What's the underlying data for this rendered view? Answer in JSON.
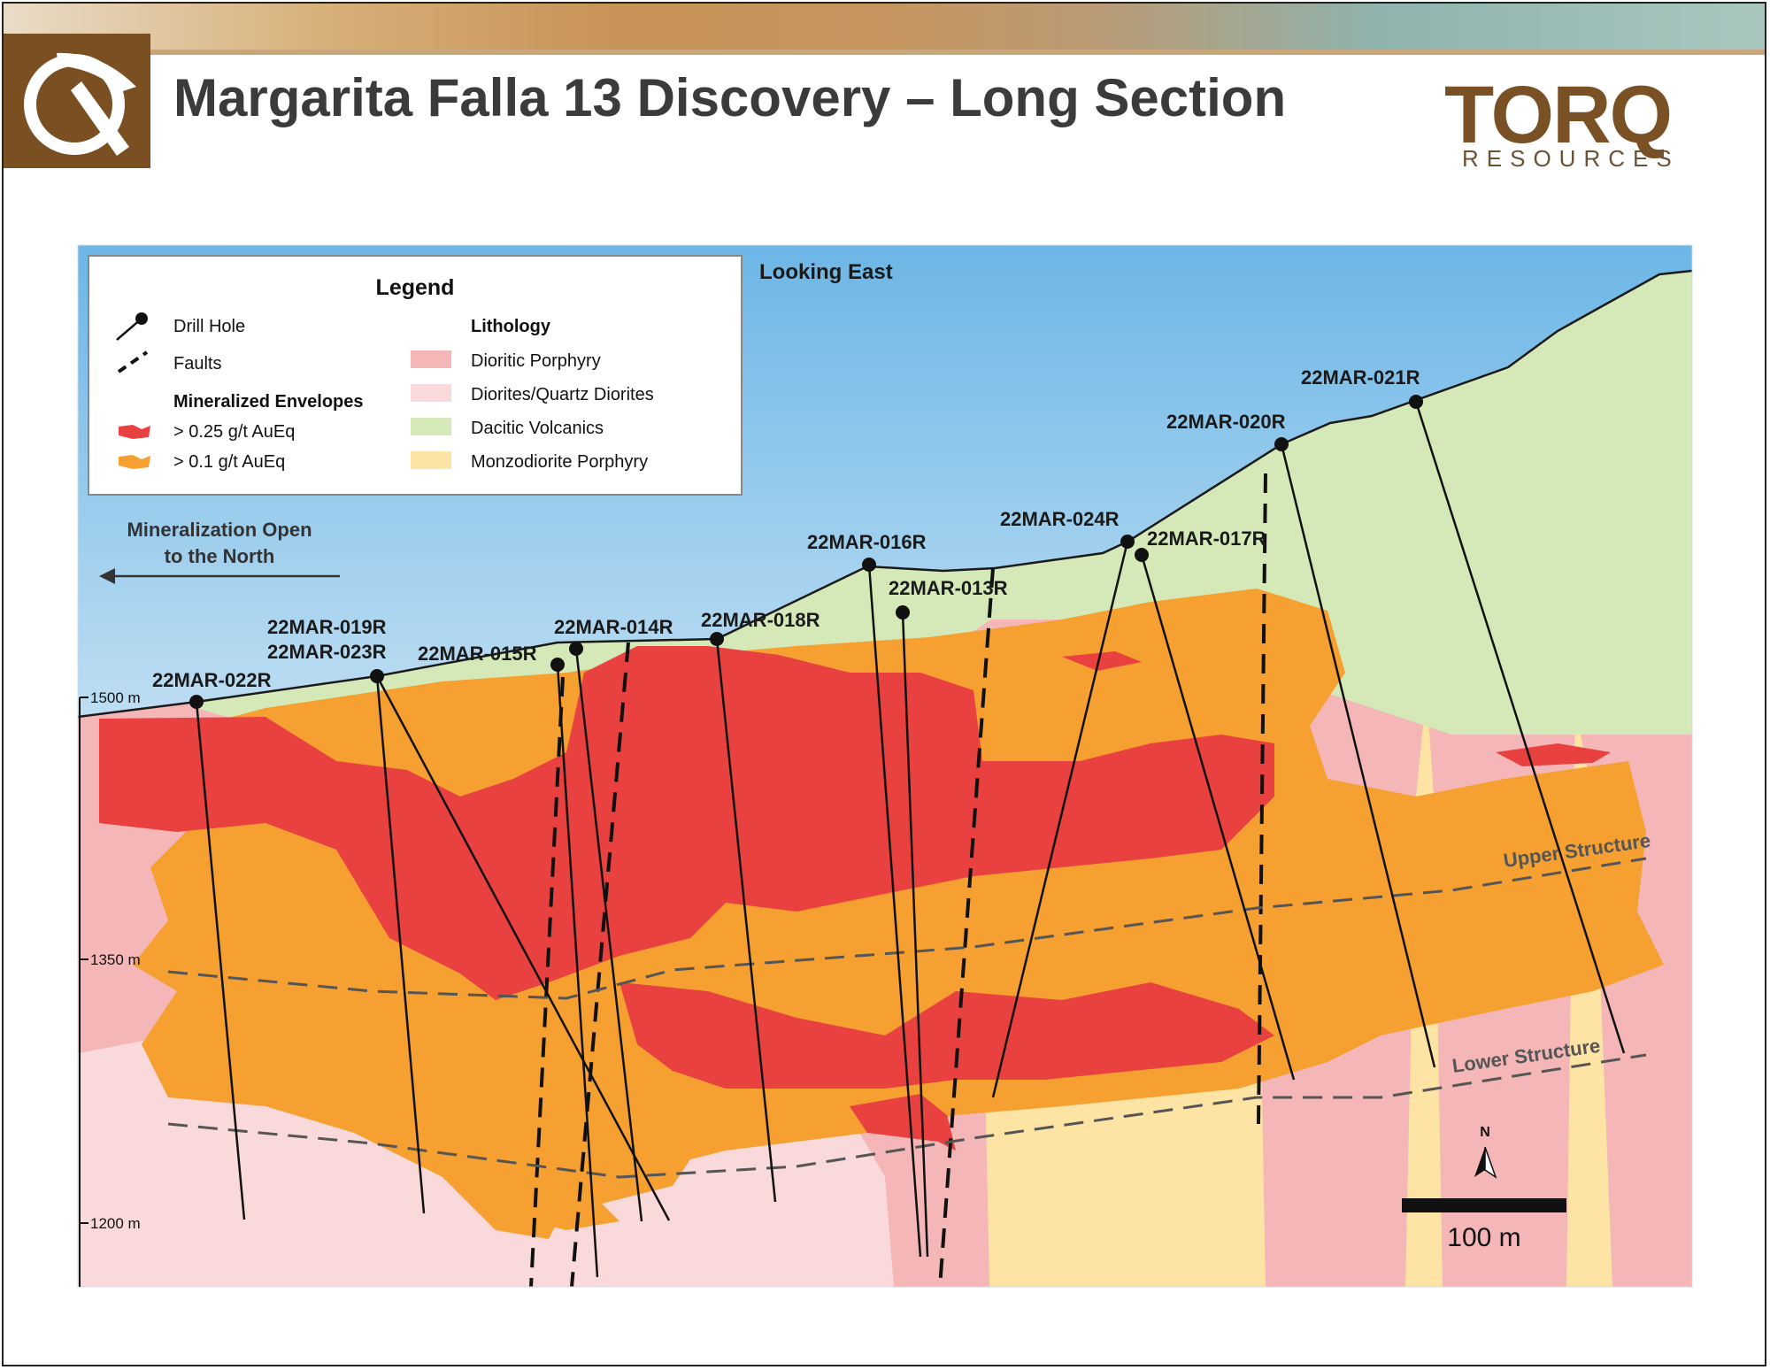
{
  "header": {
    "title": "Margarita Falla 13 Discovery – Long Section",
    "brand_name": "TORQ",
    "brand_tagline": "RESOURCES"
  },
  "section": {
    "view_label": "Looking East",
    "open_note_line1": "Mineralization Open",
    "open_note_line2": "to the North",
    "elevations": [
      "1500 m",
      "1350 m",
      "1200 m"
    ],
    "structures": {
      "upper": "Upper Structure",
      "lower": "Lower Structure"
    },
    "north_label": "N",
    "scale_label": "100 m"
  },
  "legend": {
    "title": "Legend",
    "drill_hole": "Drill Hole",
    "faults": "Faults",
    "mineralized_heading": "Mineralized Envelopes",
    "envelope_high": "> 0.25 g/t AuEq",
    "envelope_low": "> 0.1 g/t AuEq",
    "lithology_heading": "Lithology",
    "lith_1": "Dioritic Porphyry",
    "lith_2": "Diorites/Quartz Diorites",
    "lith_3": "Dacitic Volcanics",
    "lith_4": "Monzodiorite Porphyry"
  },
  "drill_holes": {
    "h022": "22MAR-022R",
    "h019": "22MAR-019R",
    "h023": "22MAR-023R",
    "h015": "22MAR-015R",
    "h014": "22MAR-014R",
    "h018": "22MAR-018R",
    "h016": "22MAR-016R",
    "h013": "22MAR-013R",
    "h024": "22MAR-024R",
    "h017": "22MAR-017R",
    "h020": "22MAR-020R",
    "h021": "22MAR-021R"
  },
  "colors": {
    "dioritic_porphyry": "#f4b6b6",
    "diorites": "#f9d9d9",
    "dacitic_volcanics": "#d5e8b8",
    "monzodiorite": "#fde3a4",
    "envelope_high": "#e8413f",
    "envelope_low": "#f5a030",
    "brand_brown": "#7a5124"
  }
}
